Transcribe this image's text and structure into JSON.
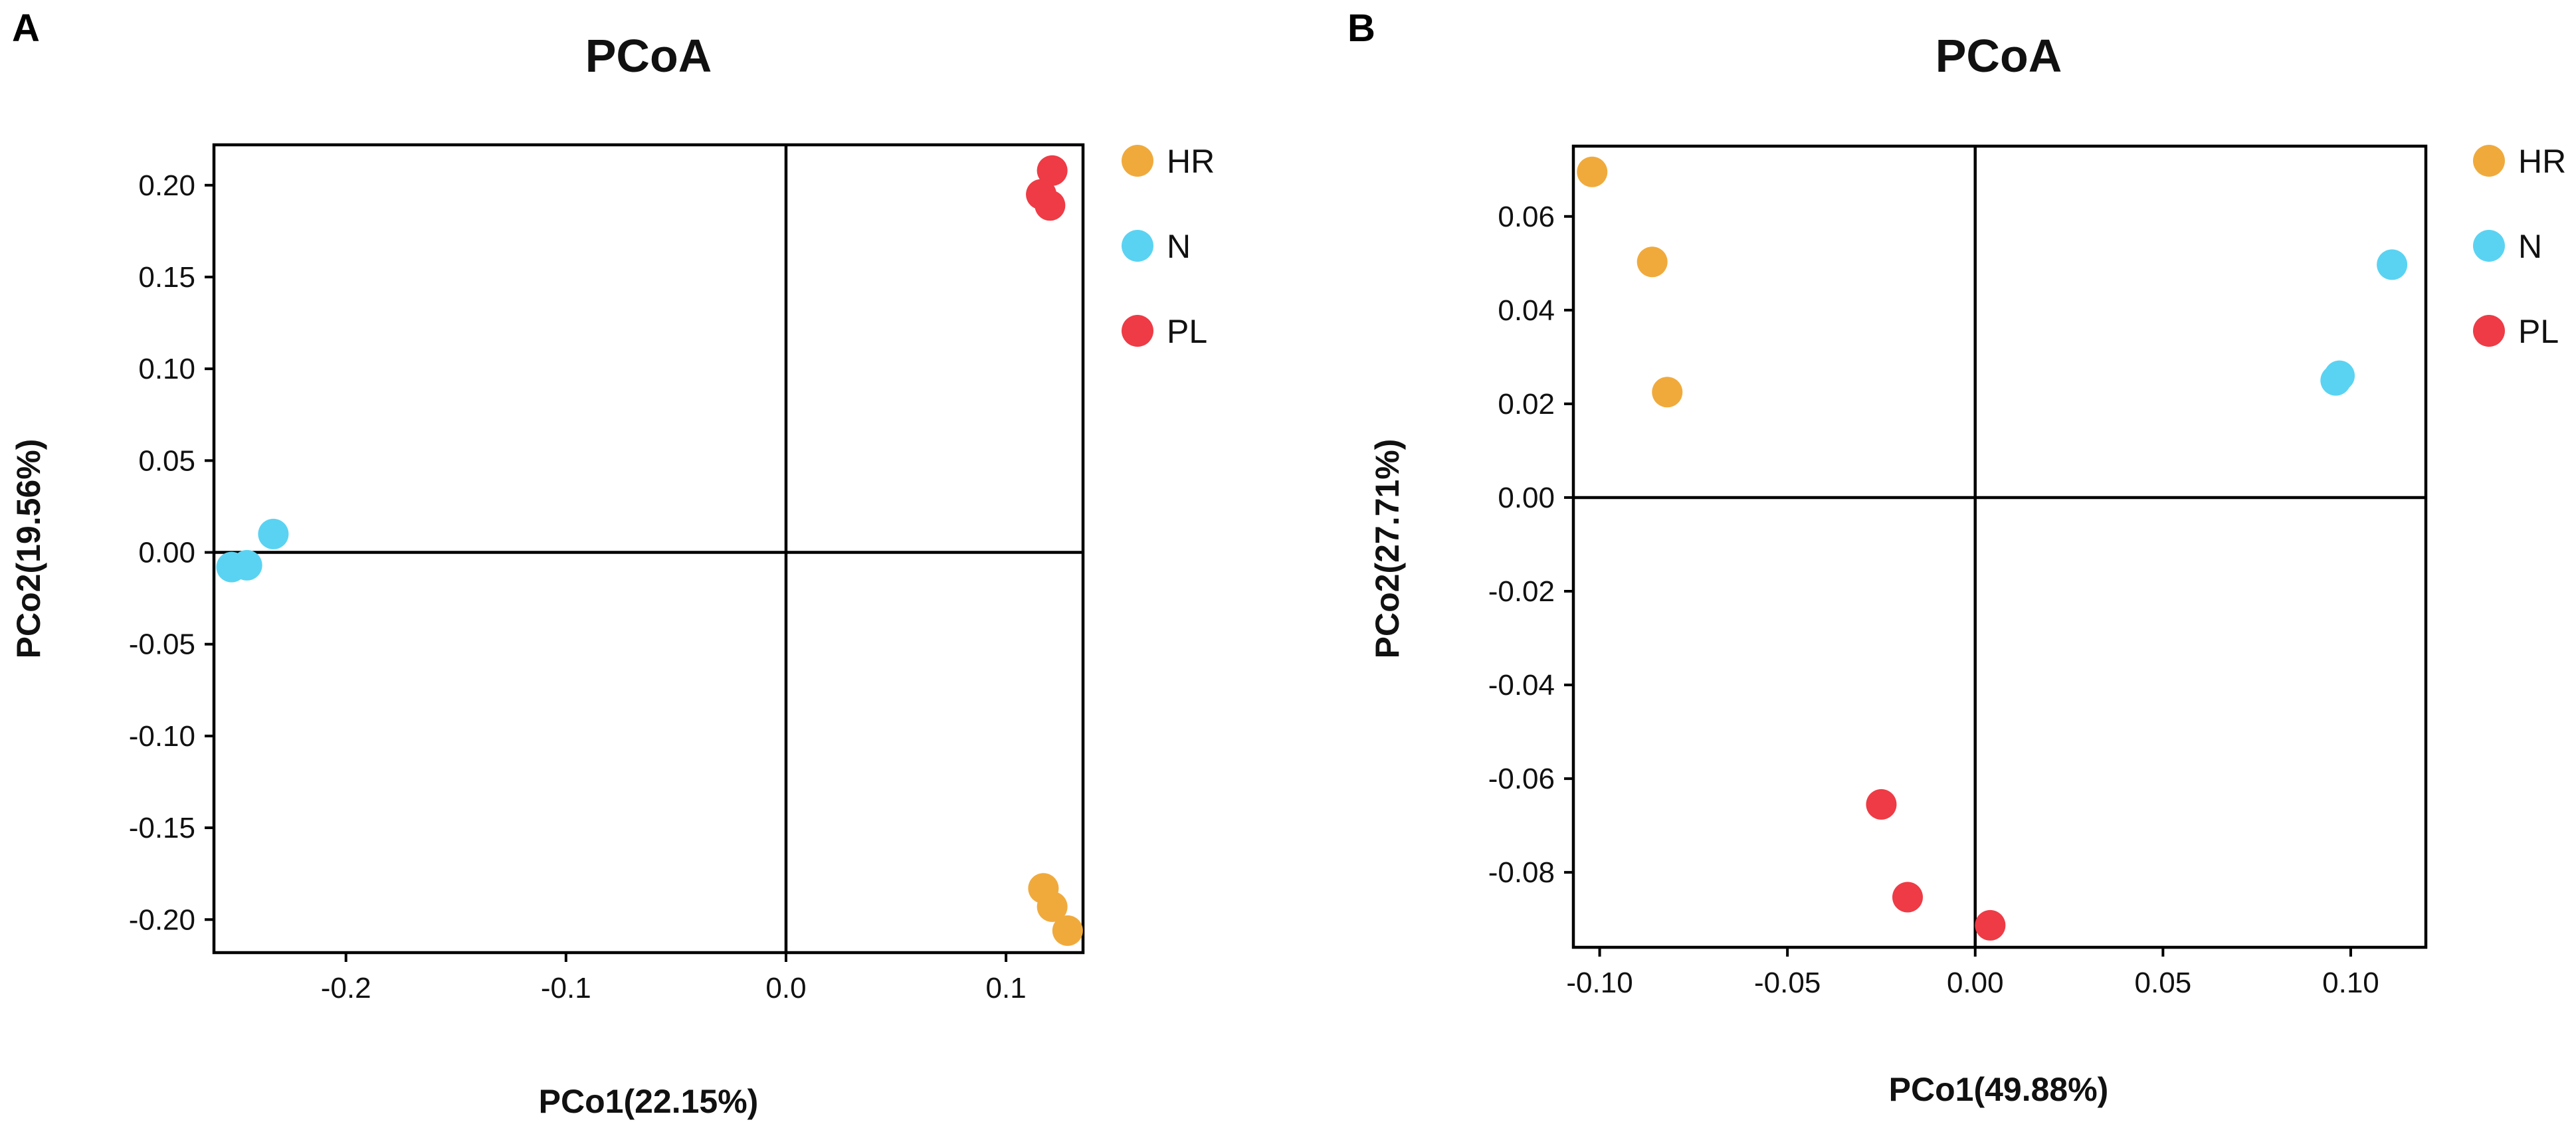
{
  "chart_data": [
    {
      "panel_label": "A",
      "type": "scatter",
      "title": "PCoA",
      "xlabel": "PCo1(22.15%)",
      "ylabel": "PCo2(19.56%)",
      "xlim": [
        -0.26,
        0.135
      ],
      "ylim": [
        -0.218,
        0.222
      ],
      "xticks": [
        -0.2,
        -0.1,
        0.0,
        0.1
      ],
      "xtick_labels": [
        "-0.2",
        "-0.1",
        "0.0",
        "0.1"
      ],
      "yticks": [
        0.2,
        0.15,
        0.1,
        0.05,
        0.0,
        -0.05,
        -0.1,
        -0.15,
        -0.2
      ],
      "ytick_labels": [
        "0.20",
        "0.15",
        "0.10",
        "0.05",
        "0.00",
        "-0.05",
        "-0.10",
        "-0.15",
        "-0.20"
      ],
      "zero_lines": true,
      "legend_position": "right-top",
      "series": [
        {
          "name": "HR",
          "color": "#F0AA3C",
          "points": [
            [
              0.117,
              -0.183
            ],
            [
              0.121,
              -0.193
            ],
            [
              0.128,
              -0.206
            ]
          ]
        },
        {
          "name": "N",
          "color": "#5AD3F2",
          "points": [
            [
              -0.233,
              0.01
            ],
            [
              -0.245,
              -0.007
            ],
            [
              -0.252,
              -0.008
            ]
          ]
        },
        {
          "name": "PL",
          "color": "#EE3B45",
          "points": [
            [
              0.121,
              0.208
            ],
            [
              0.116,
              0.195
            ],
            [
              0.12,
              0.189
            ]
          ]
        }
      ]
    },
    {
      "panel_label": "B",
      "type": "scatter",
      "title": "PCoA",
      "xlabel": "PCo1(49.88%)",
      "ylabel": "PCo2(27.71%)",
      "xlim": [
        -0.107,
        0.12
      ],
      "ylim": [
        -0.096,
        0.075
      ],
      "xticks": [
        -0.1,
        -0.05,
        0.0,
        0.05,
        0.1
      ],
      "xtick_labels": [
        "-0.10",
        "-0.05",
        "0.00",
        "0.05",
        "0.10"
      ],
      "yticks": [
        0.06,
        0.04,
        0.02,
        0.0,
        -0.02,
        -0.04,
        -0.06,
        -0.08
      ],
      "ytick_labels": [
        "0.06",
        "0.04",
        "0.02",
        "0.00",
        "-0.02",
        "-0.04",
        "-0.06",
        "-0.08"
      ],
      "zero_lines": true,
      "legend_position": "right-top",
      "series": [
        {
          "name": "HR",
          "color": "#F0AA3C",
          "points": [
            [
              -0.102,
              0.0695
            ],
            [
              -0.086,
              0.0503
            ],
            [
              -0.082,
              0.0225
            ]
          ]
        },
        {
          "name": "N",
          "color": "#5AD3F2",
          "points": [
            [
              0.111,
              0.0497
            ],
            [
              0.097,
              0.026
            ],
            [
              0.096,
              0.025
            ]
          ]
        },
        {
          "name": "PL",
          "color": "#EE3B45",
          "points": [
            [
              -0.025,
              -0.0655
            ],
            [
              -0.018,
              -0.0853
            ],
            [
              0.004,
              -0.0913
            ]
          ]
        }
      ]
    }
  ]
}
